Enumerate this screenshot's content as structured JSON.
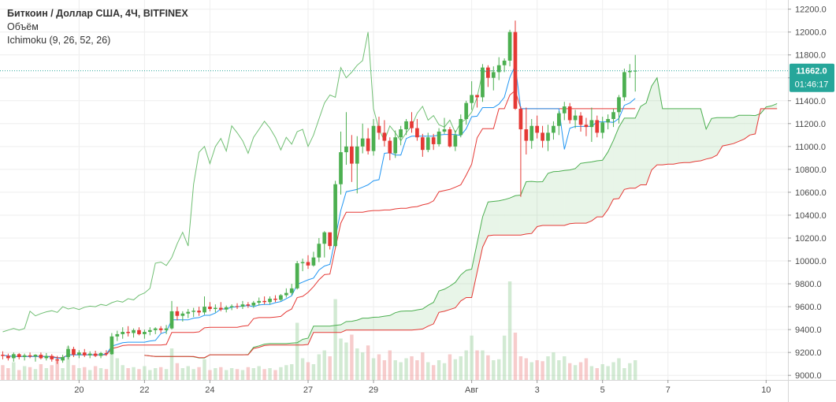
{
  "header": {
    "title": "Биткоин / Доллар США, 4Ч, BITFINEX",
    "volume_label": "Объём",
    "ichimoku_label": "Ichimoku (9, 26, 52, 26)"
  },
  "price_badge": {
    "value": "11662.0",
    "countdown": "01:46:17"
  },
  "colors": {
    "up": "#4CAF50",
    "down": "#E53935",
    "tenkan": "#2196F3",
    "kijun": "#E53935",
    "chikou": "#4CAF50",
    "span_a": "#4CAF50",
    "span_b": "#E53935",
    "cloud_bull": "#4CAF50",
    "cloud_bear": "#E53935",
    "vol_up": "#A5D6A7",
    "vol_down": "#EF9A9A",
    "badge": "#26A69A",
    "grid": "#EEEEEE"
  },
  "chart_data": {
    "type": "candlestick",
    "symbol": "Биткоин / Доллар США",
    "timeframe": "4Ч",
    "exchange": "BITFINEX",
    "indicators": [
      "Объём",
      "Ichimoku (9, 26, 52, 26)"
    ],
    "ylim": [
      8960,
      12280
    ],
    "y_ticks": [
      "12200.0",
      "12000.0",
      "11800.0",
      "11600.0",
      "11400.0",
      "11200.0",
      "11000.0",
      "10800.0",
      "10600.0",
      "10400.0",
      "10200.0",
      "10000.0",
      "9800.0",
      "9600.0",
      "9400.0",
      "9200.0",
      "9000.0"
    ],
    "x_ticks": [
      {
        "label": "20",
        "index": 14
      },
      {
        "label": "22",
        "index": 26
      },
      {
        "label": "24",
        "index": 38
      },
      {
        "label": "27",
        "index": 56
      },
      {
        "label": "29",
        "index": 68
      },
      {
        "label": "Авг",
        "index": 86
      },
      {
        "label": "3",
        "index": 98
      },
      {
        "label": "5",
        "index": 110
      },
      {
        "label": "7",
        "index": 122
      },
      {
        "label": "10",
        "index": 140
      }
    ],
    "x_range": [
      -0.5,
      144
    ],
    "last_price": 11662.0,
    "candles": [
      [
        9180,
        9210,
        9140,
        9170
      ],
      [
        9170,
        9190,
        9130,
        9150
      ],
      [
        9150,
        9200,
        9120,
        9185
      ],
      [
        9185,
        9195,
        9140,
        9160
      ],
      [
        9160,
        9190,
        9130,
        9175
      ],
      [
        9175,
        9200,
        9150,
        9165
      ],
      [
        9165,
        9185,
        9120,
        9180
      ],
      [
        9180,
        9200,
        9140,
        9150
      ],
      [
        9150,
        9195,
        9130,
        9170
      ],
      [
        9170,
        9185,
        9120,
        9140
      ],
      [
        9140,
        9170,
        9100,
        9130
      ],
      [
        9130,
        9180,
        9110,
        9160
      ],
      [
        9160,
        9260,
        9140,
        9230
      ],
      [
        9230,
        9250,
        9160,
        9180
      ],
      [
        9180,
        9220,
        9150,
        9200
      ],
      [
        9200,
        9230,
        9160,
        9175
      ],
      [
        9175,
        9210,
        9150,
        9190
      ],
      [
        9190,
        9215,
        9160,
        9170
      ],
      [
        9170,
        9205,
        9150,
        9195
      ],
      [
        9195,
        9220,
        9170,
        9185
      ],
      [
        9185,
        9370,
        9180,
        9340
      ],
      [
        9340,
        9390,
        9300,
        9360
      ],
      [
        9360,
        9420,
        9320,
        9380
      ],
      [
        9380,
        9430,
        9340,
        9370
      ],
      [
        9370,
        9410,
        9330,
        9395
      ],
      [
        9395,
        9420,
        9350,
        9360
      ],
      [
        9360,
        9400,
        9320,
        9380
      ],
      [
        9380,
        9420,
        9350,
        9395
      ],
      [
        9395,
        9420,
        9360,
        9410
      ],
      [
        9410,
        9430,
        9370,
        9395
      ],
      [
        9395,
        9440,
        9360,
        9410
      ],
      [
        9410,
        9650,
        9400,
        9560
      ],
      [
        9560,
        9600,
        9480,
        9520
      ],
      [
        9520,
        9560,
        9470,
        9540
      ],
      [
        9540,
        9580,
        9500,
        9555
      ],
      [
        9555,
        9590,
        9510,
        9565
      ],
      [
        9565,
        9600,
        9520,
        9550
      ],
      [
        9550,
        9690,
        9530,
        9600
      ],
      [
        9600,
        9640,
        9560,
        9580
      ],
      [
        9580,
        9620,
        9550,
        9590
      ],
      [
        9590,
        9640,
        9560,
        9575
      ],
      [
        9575,
        9610,
        9550,
        9595
      ],
      [
        9595,
        9620,
        9570,
        9605
      ],
      [
        9605,
        9630,
        9580,
        9600
      ],
      [
        9600,
        9650,
        9580,
        9620
      ],
      [
        9620,
        9640,
        9590,
        9610
      ],
      [
        9610,
        9650,
        9590,
        9635
      ],
      [
        9635,
        9680,
        9610,
        9650
      ],
      [
        9650,
        9690,
        9620,
        9640
      ],
      [
        9640,
        9690,
        9620,
        9670
      ],
      [
        9670,
        9700,
        9640,
        9660
      ],
      [
        9660,
        9710,
        9650,
        9700
      ],
      [
        9700,
        9760,
        9680,
        9720
      ],
      [
        9720,
        9800,
        9700,
        9760
      ],
      [
        9760,
        10000,
        9750,
        9980
      ],
      [
        9980,
        10020,
        9910,
        9990
      ],
      [
        9990,
        10050,
        9930,
        9960
      ],
      [
        9960,
        10080,
        9950,
        10030
      ],
      [
        10030,
        10200,
        9990,
        10150
      ],
      [
        10150,
        10260,
        10030,
        10250
      ],
      [
        10250,
        10230,
        10100,
        10130
      ],
      [
        10130,
        10700,
        10120,
        10670
      ],
      [
        10670,
        11130,
        10580,
        10950
      ],
      [
        10950,
        11300,
        10840,
        11000
      ],
      [
        11000,
        11100,
        10690,
        10850
      ],
      [
        10850,
        11090,
        10590,
        11000
      ],
      [
        11000,
        11200,
        10940,
        11070
      ],
      [
        11070,
        11160,
        10930,
        10960
      ],
      [
        10960,
        11240,
        10920,
        11180
      ],
      [
        11180,
        11260,
        11060,
        11120
      ],
      [
        11120,
        11230,
        11000,
        11050
      ],
      [
        11050,
        11080,
        10880,
        10940
      ],
      [
        10940,
        11140,
        10900,
        11080
      ],
      [
        11080,
        11180,
        11010,
        11150
      ],
      [
        11150,
        11240,
        11100,
        11220
      ],
      [
        11220,
        11300,
        11120,
        11160
      ],
      [
        11160,
        11240,
        11050,
        11080
      ],
      [
        11080,
        11110,
        10910,
        10970
      ],
      [
        10970,
        11120,
        10950,
        11080
      ],
      [
        11080,
        11110,
        10970,
        11020
      ],
      [
        11020,
        11160,
        11000,
        11130
      ],
      [
        11130,
        11250,
        11110,
        11150
      ],
      [
        11150,
        11170,
        10990,
        11000
      ],
      [
        11000,
        11140,
        10960,
        11100
      ],
      [
        11100,
        11280,
        11080,
        11240
      ],
      [
        11240,
        11400,
        11190,
        11380
      ],
      [
        11380,
        11570,
        11320,
        11450
      ],
      [
        11450,
        11450,
        11340,
        11430
      ],
      [
        11430,
        11720,
        11390,
        11690
      ],
      [
        11690,
        11710,
        11520,
        11600
      ],
      [
        11600,
        11700,
        11490,
        11650
      ],
      [
        11650,
        11780,
        11580,
        11710
      ],
      [
        11710,
        11770,
        11650,
        11750
      ],
      [
        11750,
        12020,
        11700,
        12000
      ],
      [
        12000,
        12100,
        11320,
        11330
      ],
      [
        11330,
        11350,
        10560,
        11150
      ],
      [
        11150,
        11340,
        10930,
        11050
      ],
      [
        11050,
        11240,
        10980,
        11180
      ],
      [
        11180,
        11270,
        11070,
        11120
      ],
      [
        11120,
        11180,
        10990,
        11050
      ],
      [
        11050,
        11190,
        10960,
        11120
      ],
      [
        11120,
        11220,
        11060,
        11180
      ],
      [
        11180,
        11310,
        11100,
        11290
      ],
      [
        11290,
        11390,
        11230,
        11350
      ],
      [
        11350,
        11380,
        11200,
        11230
      ],
      [
        11230,
        11320,
        11160,
        11270
      ],
      [
        11270,
        11300,
        11130,
        11190
      ],
      [
        11190,
        11250,
        11090,
        11170
      ],
      [
        11170,
        11340,
        11040,
        11230
      ],
      [
        11230,
        11270,
        11080,
        11120
      ],
      [
        11120,
        11260,
        11070,
        11210
      ],
      [
        11210,
        11280,
        11150,
        11240
      ],
      [
        11240,
        11330,
        11170,
        11300
      ],
      [
        11300,
        11450,
        11200,
        11430
      ],
      [
        11430,
        11680,
        11400,
        11650
      ],
      [
        11650,
        11720,
        11600,
        11660
      ],
      [
        11660,
        11800,
        11480,
        11662
      ]
    ],
    "volume_ratios": [
      0.15,
      0.12,
      0.18,
      0.1,
      0.14,
      0.13,
      0.11,
      0.16,
      0.12,
      0.15,
      0.2,
      0.12,
      0.34,
      0.15,
      0.12,
      0.13,
      0.1,
      0.14,
      0.12,
      0.11,
      0.38,
      0.22,
      0.15,
      0.12,
      0.13,
      0.11,
      0.14,
      0.1,
      0.12,
      0.13,
      0.11,
      0.32,
      0.17,
      0.12,
      0.14,
      0.11,
      0.13,
      0.21,
      0.1,
      0.12,
      0.13,
      0.1,
      0.12,
      0.11,
      0.1,
      0.13,
      0.12,
      0.14,
      0.11,
      0.12,
      0.1,
      0.13,
      0.15,
      0.16,
      0.58,
      0.22,
      0.18,
      0.16,
      0.26,
      0.3,
      0.24,
      0.82,
      0.42,
      0.38,
      0.46,
      0.32,
      0.28,
      0.35,
      0.22,
      0.26,
      0.2,
      0.3,
      0.2,
      0.18,
      0.22,
      0.24,
      0.2,
      0.28,
      0.18,
      0.15,
      0.2,
      0.17,
      0.26,
      0.21,
      0.24,
      0.3,
      0.45,
      0.3,
      0.3,
      0.25,
      0.2,
      0.21,
      0.45,
      1.0,
      0.48,
      0.24,
      0.22,
      0.18,
      0.2,
      0.19,
      0.24,
      0.28,
      0.2,
      0.24,
      0.17,
      0.15,
      0.18,
      0.22,
      0.14,
      0.12,
      0.16,
      0.14,
      0.18,
      0.22,
      0.12,
      0.17,
      0.2
    ]
  }
}
